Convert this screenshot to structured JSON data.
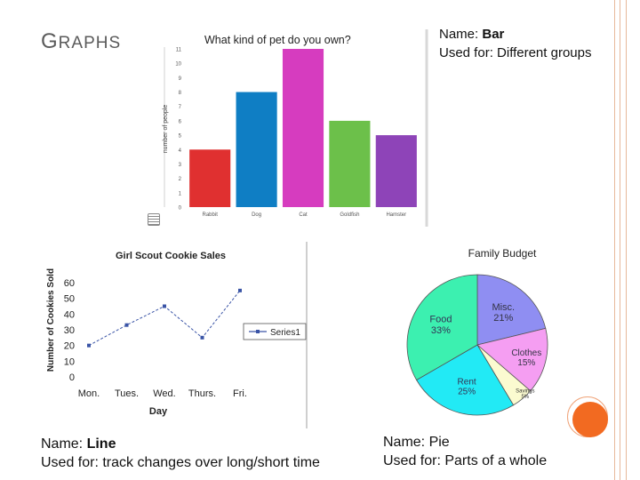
{
  "slide": {
    "title_first": "G",
    "title_rest": "RAPHS",
    "accent_color": "#f26a21"
  },
  "captions": {
    "bar": {
      "name_prefix": "Name: ",
      "name": "Bar",
      "used_for": "Used for: Different groups"
    },
    "line": {
      "name_prefix": "Name: ",
      "name": "Line",
      "used_for": "Used for: track changes over long/short time"
    },
    "pie": {
      "name_prefix": "Name: ",
      "name": "Pie",
      "used_for": "Used for: Parts of a whole"
    }
  },
  "chart_data": [
    {
      "type": "bar",
      "title": "What kind of pet do you own?",
      "ylabel": "number of people",
      "xlabel": "",
      "categories": [
        "Rabbit",
        "Dog",
        "Cat",
        "Goldfish",
        "Hamster"
      ],
      "values": [
        4,
        8,
        11,
        6,
        5
      ],
      "colors": [
        "#e03030",
        "#0f7ec4",
        "#d63cbf",
        "#6cc04a",
        "#8e44b8"
      ],
      "ylim": [
        0,
        11
      ],
      "yticks": [
        "0",
        "1",
        "2",
        "3",
        "4",
        "5",
        "6",
        "7",
        "8",
        "9",
        "10",
        "11"
      ],
      "grid": false
    },
    {
      "type": "line",
      "title": "Girl Scout Cookie Sales",
      "xlabel": "Day",
      "ylabel": "Number of Cookies Sold",
      "categories": [
        "Mon.",
        "Tues.",
        "Wed.",
        "Thurs.",
        "Fri."
      ],
      "series": [
        {
          "name": "Series1",
          "values": [
            20,
            33,
            45,
            25,
            55
          ],
          "color": "#3a54a6"
        }
      ],
      "ylim": [
        0,
        60
      ],
      "yticks": [
        "0",
        "10",
        "20",
        "30",
        "40",
        "50",
        "60"
      ],
      "legend": "right",
      "grid": false
    },
    {
      "type": "pie",
      "title": "Family Budget",
      "slices": [
        {
          "label": "Misc.",
          "value": 21,
          "pct_label": "21%",
          "color": "#8f8ef2"
        },
        {
          "label": "Clothes",
          "value": 15,
          "pct_label": "15%",
          "color": "#f59ef2"
        },
        {
          "label": "Savings",
          "value": 5,
          "pct_label": "5%",
          "color": "#fbfbd0"
        },
        {
          "label": "Rent",
          "value": 25,
          "pct_label": "25%",
          "color": "#22eaf5"
        },
        {
          "label": "Food",
          "value": 33,
          "pct_label": "33%",
          "color": "#3cf0b0"
        }
      ]
    }
  ]
}
